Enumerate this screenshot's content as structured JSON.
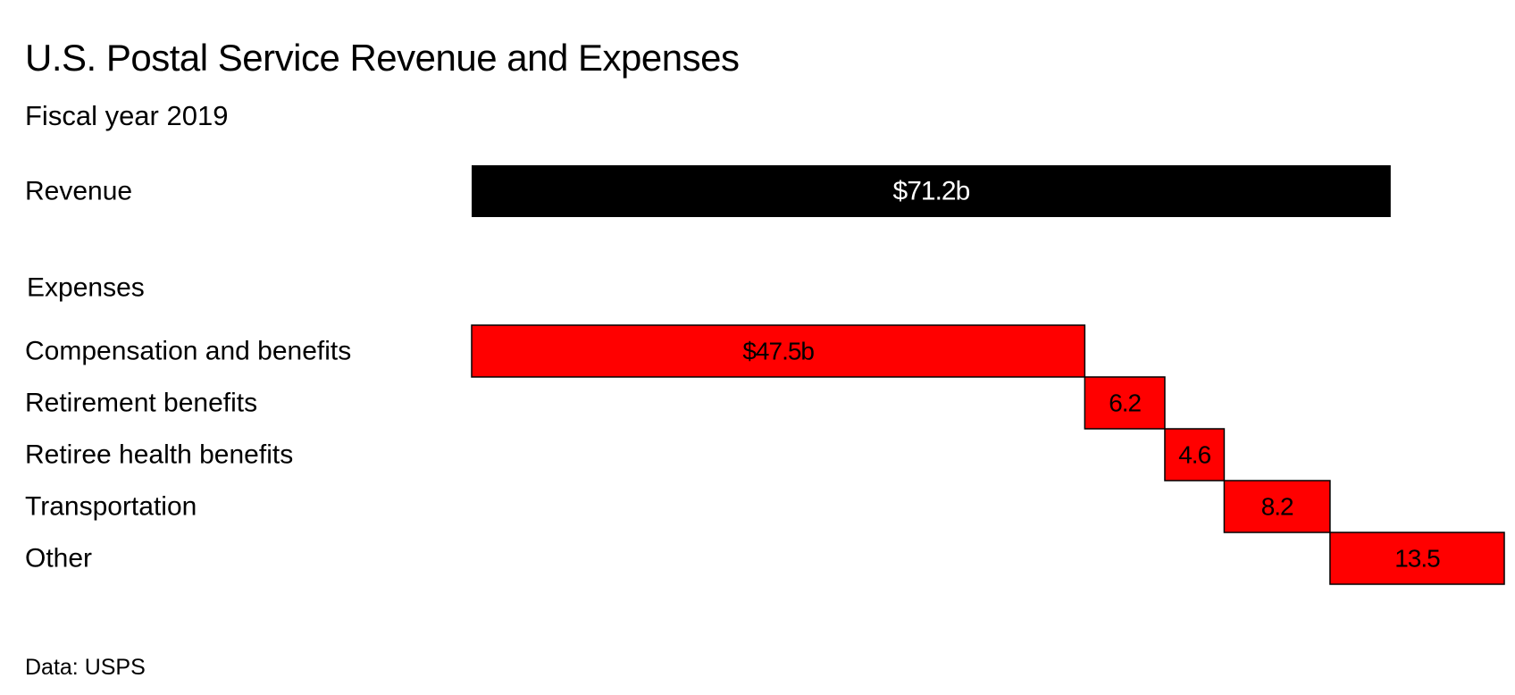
{
  "title": "U.S. Postal Service Revenue and Expenses",
  "subtitle": "Fiscal year 2019",
  "source": "Data: USPS",
  "chart_data": {
    "type": "waterfall",
    "title": "U.S. Postal Service Revenue and Expenses",
    "subtitle": "Fiscal year 2019",
    "unit": "$ billions",
    "revenue": {
      "label": "Revenue",
      "value": 71.2,
      "value_label": "$71.2b",
      "color": "#000000"
    },
    "expenses_heading": "Expenses",
    "expenses_color": "#ff0000",
    "expenses": [
      {
        "label": "Compensation and benefits",
        "value": 47.5,
        "value_label": "$47.5b"
      },
      {
        "label": "Retirement benefits",
        "value": 6.2,
        "value_label": "6.2"
      },
      {
        "label": "Retiree health benefits",
        "value": 4.6,
        "value_label": "4.6"
      },
      {
        "label": "Transportation",
        "value": 8.2,
        "value_label": "8.2"
      },
      {
        "label": "Other",
        "value": 13.5,
        "value_label": "13.5"
      }
    ],
    "grid": false,
    "legend": "none"
  }
}
